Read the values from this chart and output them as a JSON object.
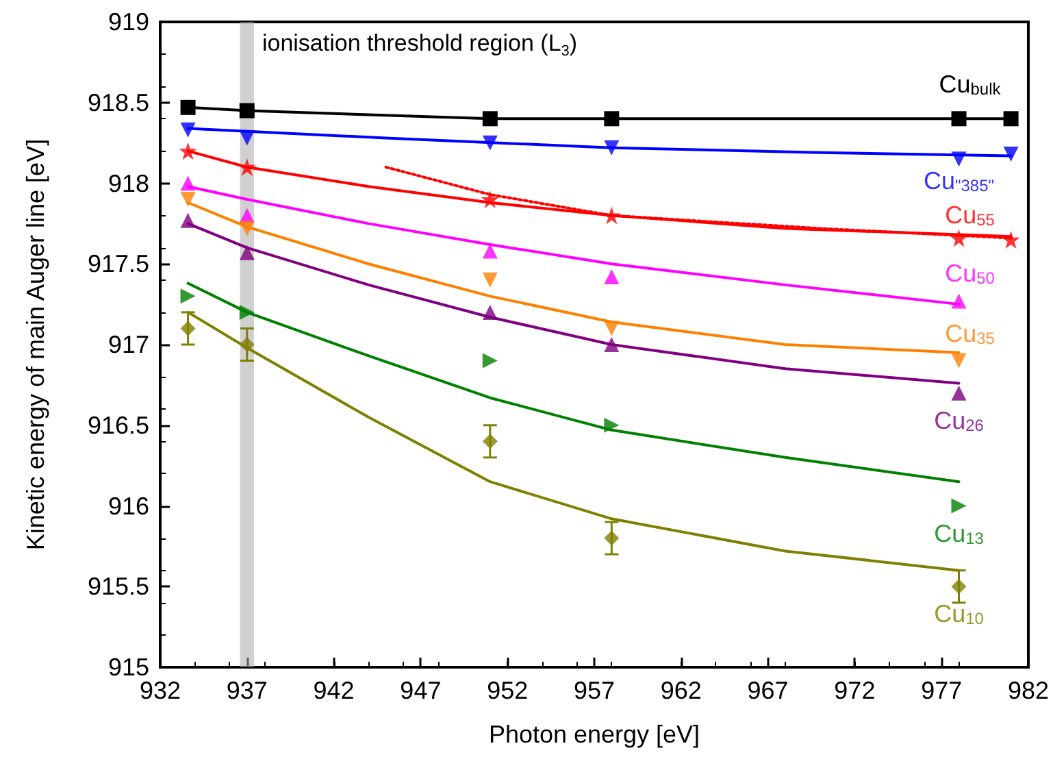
{
  "chart_data": {
    "type": "scatter",
    "xlabel": "Photon energy [eV]",
    "ylabel": "Kinetic energy of main Auger line [eV]",
    "xlim": [
      932,
      982
    ],
    "xticks": [
      932,
      937,
      942,
      947,
      952,
      957,
      962,
      967,
      972,
      977,
      982
    ],
    "ylim": [
      915,
      919
    ],
    "yticks": [
      915,
      915.5,
      916,
      916.5,
      917,
      917.5,
      918,
      918.5,
      919
    ],
    "grid": false,
    "bands": [
      {
        "axis": "x",
        "from": 936.6,
        "to": 937.4,
        "label": "ionisation threshold region (L$_{3}$)",
        "color": "#aaaaaa"
      }
    ],
    "series": [
      {
        "name": "Cu$_{bulk}$",
        "type": "line",
        "marker": "square",
        "color": "#000000",
        "x": [
          933.6,
          937,
          951,
          958,
          978,
          981
        ],
        "values": [
          918.47,
          918.45,
          918.4,
          918.4,
          918.4,
          918.4
        ]
      },
      {
        "name": "Cu$_{\"385\"}$",
        "marker": "triangle-down",
        "color": "#0000ff",
        "x": [
          933.6,
          937,
          951,
          958,
          978,
          981
        ],
        "values": [
          918.33,
          918.28,
          918.25,
          918.22,
          918.15,
          918.18
        ]
      },
      {
        "name": "Cu$_{55}$",
        "marker": "star",
        "color": "#ff0000",
        "x": [
          933.6,
          937,
          951,
          958,
          978,
          981
        ],
        "values": [
          918.2,
          918.1,
          917.9,
          917.8,
          917.66,
          917.65
        ]
      },
      {
        "name": "Cu$_{50}$",
        "marker": "triangle",
        "color": "#ff00ff",
        "x": [
          933.6,
          937,
          951,
          958,
          978
        ],
        "values": [
          918.0,
          917.8,
          917.58,
          917.42,
          917.27
        ]
      },
      {
        "name": "Cu$_{35}$",
        "marker": "triangle-down",
        "color": "#ff8000",
        "x": [
          933.6,
          937,
          951,
          958,
          978
        ],
        "values": [
          917.9,
          917.72,
          917.4,
          917.1,
          916.9
        ]
      },
      {
        "name": "Cu$_{26}$",
        "marker": "triangle",
        "color": "#800080",
        "x": [
          933.6,
          937,
          951,
          958,
          978
        ],
        "values": [
          917.77,
          917.57,
          917.2,
          917.0,
          916.7
        ]
      },
      {
        "name": "Cu$_{13}$",
        "marker": "triangle-right",
        "color": "#008000",
        "x": [
          933.6,
          937,
          951,
          958,
          978
        ],
        "values": [
          917.3,
          917.2,
          916.9,
          916.5,
          916.0
        ]
      },
      {
        "name": "Cu$_{10}$",
        "marker": "diamond",
        "color": "#808000",
        "x": [
          933.6,
          937,
          951,
          958,
          978
        ],
        "values": [
          917.1,
          917.0,
          916.4,
          915.8,
          915.5
        ],
        "errors": [
          0.1,
          0.1,
          0.1,
          0.1,
          0.1
        ]
      },
      {
        "type": "line",
        "marker": "none",
        "color": "#0000ff",
        "x": [
          933.6,
          945,
          958,
          970,
          981
        ],
        "values": [
          918.34,
          918.28,
          918.22,
          918.19,
          918.17
        ]
      },
      {
        "type": "line",
        "marker": "none",
        "color": "#ff0000",
        "x": [
          933.6,
          937,
          944,
          951,
          958,
          968,
          981
        ],
        "values": [
          918.2,
          918.1,
          917.98,
          917.88,
          917.8,
          917.72,
          917.67
        ]
      },
      {
        "type": "line",
        "marker": "none",
        "line_style": "dotted",
        "color": "#ff0000",
        "x": [
          945,
          951,
          958,
          970,
          981
        ],
        "values": [
          918.1,
          917.93,
          917.8,
          917.72,
          917.66
        ]
      },
      {
        "type": "line",
        "marker": "none",
        "color": "#ff00ff",
        "x": [
          933.6,
          937,
          944,
          951,
          958,
          968,
          978
        ],
        "values": [
          917.98,
          917.9,
          917.75,
          917.62,
          917.5,
          917.37,
          917.25
        ]
      },
      {
        "type": "line",
        "marker": "none",
        "color": "#ff8000",
        "x": [
          933.6,
          937,
          944,
          951,
          958,
          968,
          978
        ],
        "values": [
          917.88,
          917.73,
          917.5,
          917.3,
          917.14,
          917.0,
          916.95
        ]
      },
      {
        "type": "line",
        "marker": "none",
        "color": "#800080",
        "x": [
          933.6,
          937,
          944,
          951,
          958,
          968,
          978
        ],
        "values": [
          917.75,
          917.6,
          917.37,
          917.17,
          917.0,
          916.85,
          916.76
        ]
      },
      {
        "type": "line",
        "marker": "none",
        "color": "#008000",
        "x": [
          933.6,
          937,
          944,
          951,
          958,
          968,
          978
        ],
        "values": [
          917.38,
          917.2,
          916.93,
          916.67,
          916.47,
          916.3,
          916.15
        ]
      },
      {
        "type": "line",
        "marker": "none",
        "color": "#808000",
        "x": [
          933.6,
          937,
          944,
          951,
          958,
          968,
          978
        ],
        "values": [
          917.2,
          916.98,
          916.55,
          916.15,
          915.92,
          915.72,
          915.6
        ]
      }
    ]
  }
}
